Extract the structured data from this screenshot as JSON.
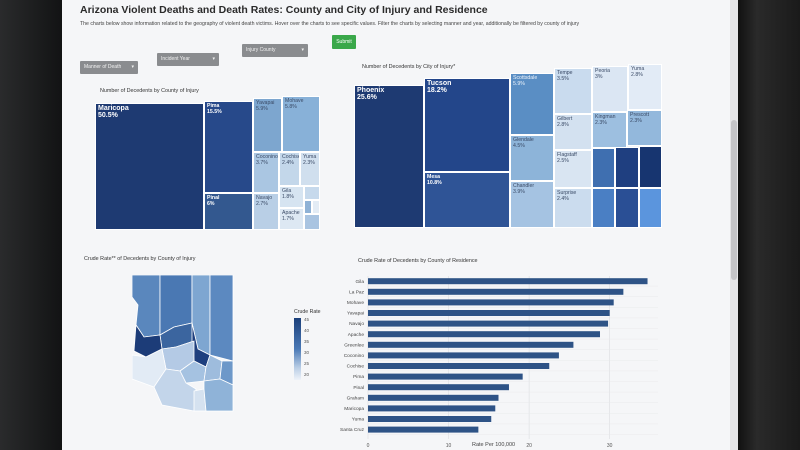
{
  "page": {
    "title": "Arizona Violent Deaths and Death Rates: County and City of Injury and Residence",
    "subtitle": "The charts below show information related to the geography of violent death victims. Hover over the charts to see specific values. Filter the charts by selecting manner and year, additionally be filtered by county of injury"
  },
  "filters": {
    "manner": "Manner of Death",
    "year": "Incident Year",
    "county": "Injury County",
    "submit_label": "Submit"
  },
  "county_treemap": {
    "title": "Number of Decedents by County of Injury",
    "tiles": [
      {
        "name": "Maricopa",
        "value": "50.5%"
      },
      {
        "name": "Pima",
        "value": "15.5%"
      },
      {
        "name": "Pinal",
        "value": "6%"
      },
      {
        "name": "Yavapai",
        "value": "5.9%"
      },
      {
        "name": "Mohave",
        "value": "5.8%"
      },
      {
        "name": "Coconino",
        "value": "3.7%"
      },
      {
        "name": "Cochise",
        "value": "2.4%"
      },
      {
        "name": "Yuma",
        "value": "2.3%"
      },
      {
        "name": "Navajo",
        "value": "2.7%"
      },
      {
        "name": "Gila",
        "value": "1.8%"
      },
      {
        "name": "Apache",
        "value": "1.7%"
      }
    ]
  },
  "city_treemap": {
    "title": "Number of Decedents by City of Injury*",
    "tiles": [
      {
        "name": "Phoenix",
        "value": "25.6%"
      },
      {
        "name": "Tucson",
        "value": "18.2%"
      },
      {
        "name": "Mesa",
        "value": "10.8%"
      },
      {
        "name": "Scottsdale",
        "value": "5.9%"
      },
      {
        "name": "Glendale",
        "value": "4.5%"
      },
      {
        "name": "Chandler",
        "value": "3.9%"
      },
      {
        "name": "Tempe",
        "value": "3.5%"
      },
      {
        "name": "Peoria",
        "value": "3%"
      },
      {
        "name": "Yuma",
        "value": "2.8%"
      },
      {
        "name": "Gilbert",
        "value": "2.8%"
      },
      {
        "name": "Kingman",
        "value": "2.3%"
      },
      {
        "name": "Prescott",
        "value": "2.3%"
      },
      {
        "name": "Flagstaff",
        "value": "2.5%"
      },
      {
        "name": "Surprise",
        "value": "2.4%"
      }
    ]
  },
  "map": {
    "title": "Crude Rate** of Decedents by County of Injury",
    "legend_title": "Crude Rate",
    "legend_ticks": [
      "45",
      "40",
      "35",
      "30",
      "25",
      "20"
    ]
  },
  "bar_chart": {
    "title": "Crude Rate of Decedents by County of Residence",
    "x_axis_title": "Rate Per 100,000",
    "x_ticks": [
      "0",
      "10",
      "20",
      "30"
    ],
    "colors": {
      "bar": "#2e5386"
    }
  },
  "chart_data": {
    "type": "bar",
    "orientation": "horizontal",
    "categories": [
      "Gila",
      "La Paz",
      "Mohave",
      "Yavapai",
      "Navajo",
      "Apache",
      "Greenlee",
      "Coconino",
      "Cochise",
      "Pima",
      "Pinal",
      "Graham",
      "Maricopa",
      "Yuma",
      "Santa Cruz"
    ],
    "values": [
      34.7,
      31.7,
      30.5,
      30,
      29.8,
      28.8,
      25.5,
      23.7,
      22.5,
      19.2,
      17.5,
      16.2,
      15.8,
      15.3,
      13.7
    ],
    "xlim": [
      0,
      36
    ],
    "xlabel": "Rate Per 100,000",
    "title": "Crude Rate of Decedents by County of Residence",
    "grid": true
  }
}
